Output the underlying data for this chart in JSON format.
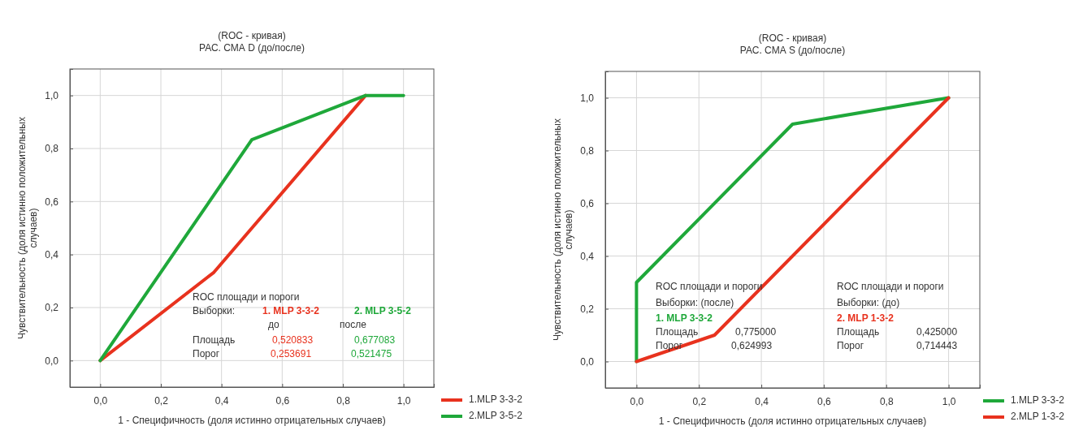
{
  "chart_data": [
    {
      "type": "line",
      "title": "(ROC - кривая)",
      "subtitle": "РАС. СМА D (до/после)",
      "xlabel": "1 - Специфичность (доля истинно отрицательных случаев)",
      "ylabel": "Чувствительность (доля истинно положительных случаев)",
      "xlim": [
        -0.1,
        1.1
      ],
      "ylim": [
        -0.1,
        1.1
      ],
      "xticks": [
        {
          "value": 0,
          "label": "0,0"
        },
        {
          "value": 0.2,
          "label": "0,2"
        },
        {
          "value": 0.4,
          "label": "0,4"
        },
        {
          "value": 0.6,
          "label": "0,6"
        },
        {
          "value": 0.8,
          "label": "0,8"
        },
        {
          "value": 1,
          "label": "1,0"
        }
      ],
      "yticks": [
        {
          "value": 0,
          "label": "0,0"
        },
        {
          "value": 0.2,
          "label": "0,2"
        },
        {
          "value": 0.4,
          "label": "0,4"
        },
        {
          "value": 0.6,
          "label": "0,6"
        },
        {
          "value": 0.8,
          "label": "0,8"
        },
        {
          "value": 1,
          "label": "1,0"
        }
      ],
      "grid": true,
      "legend": "bottom right",
      "marker": "none",
      "line_style": "solid",
      "series": [
        {
          "name": "1.MLP 3-3-2",
          "color": "#e8321e",
          "x": [
            0,
            0.375,
            0.875
          ],
          "values": [
            0,
            0.333,
            1
          ]
        },
        {
          "name": "2.MLP 3-5-2",
          "color": "#1fa83a",
          "x": [
            0,
            0.5,
            0.875,
            1
          ],
          "values": [
            0,
            0.833,
            1,
            1
          ]
        }
      ],
      "annotations": [
        "ROC площади и пороги",
        "Выборки:",
        "1. MLP 3-3-2",
        "2. MLP 3-5-2",
        "до",
        "после",
        "Площадь",
        "0,520833",
        "0,677083",
        "Порог",
        "0,253691",
        "0,521475"
      ]
    },
    {
      "type": "line",
      "title": "(ROC - кривая)",
      "subtitle": "РАС. СМА S (до/после)",
      "xlabel": "1 - Специфичность (доля истинно отрицательных случаев)",
      "ylabel": "Чувствительность (доля истинно положительных случаев)",
      "xlim": [
        -0.1,
        1.1
      ],
      "ylim": [
        -0.1,
        1.1
      ],
      "xticks": [
        {
          "value": 0,
          "label": "0,0"
        },
        {
          "value": 0.2,
          "label": "0,2"
        },
        {
          "value": 0.4,
          "label": "0,4"
        },
        {
          "value": 0.6,
          "label": "0,6"
        },
        {
          "value": 0.8,
          "label": "0,8"
        },
        {
          "value": 1,
          "label": "1,0"
        }
      ],
      "yticks": [
        {
          "value": 0,
          "label": "0,0"
        },
        {
          "value": 0.2,
          "label": "0,2"
        },
        {
          "value": 0.4,
          "label": "0,4"
        },
        {
          "value": 0.6,
          "label": "0,6"
        },
        {
          "value": 0.8,
          "label": "0,8"
        },
        {
          "value": 1,
          "label": "1,0"
        }
      ],
      "grid": true,
      "legend": "bottom right",
      "marker": "none",
      "line_style": "solid",
      "series": [
        {
          "name": "1.MLP 3-3-2",
          "color": "#1fa83a",
          "x": [
            0,
            0,
            0.5,
            1
          ],
          "values": [
            0,
            0.3,
            0.9,
            1
          ]
        },
        {
          "name": "2.MLP 1-3-2",
          "color": "#e8321e",
          "x": [
            0,
            0.25,
            1
          ],
          "values": [
            0,
            0.1,
            1
          ]
        }
      ],
      "annotations": [
        "ROC площади и пороги",
        "Выборки: (после)",
        "1. MLP 3-3-2",
        "Площадь",
        "0,775000",
        "Порог",
        "0,624993",
        "ROC площади и пороги",
        "Выборки: (до)",
        "2. MLP 1-3-2",
        "Площадь",
        "0,425000",
        "Порог",
        "0,714443"
      ]
    }
  ]
}
